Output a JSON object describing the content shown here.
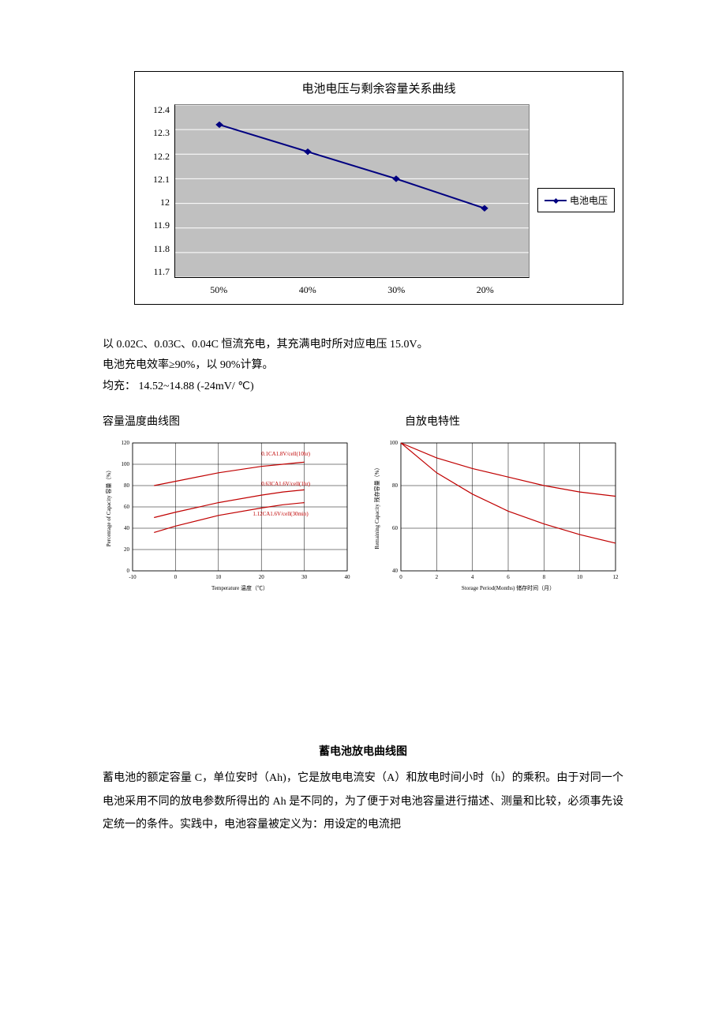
{
  "main_chart": {
    "type": "line",
    "title": "电池电压与剩余容量关系曲线",
    "title_fontsize": 15,
    "legend_label": "电池电压",
    "categories": [
      "50%",
      "40%",
      "30%",
      "20%"
    ],
    "values": [
      12.32,
      12.21,
      12.1,
      11.98
    ],
    "ylim": [
      11.7,
      12.4
    ],
    "ytick_step": 0.1,
    "yticks": [
      "12.4",
      "12.3",
      "12.2",
      "12.1",
      "12",
      "11.9",
      "11.8",
      "11.7"
    ],
    "line_color": "#000080",
    "marker_color": "#000080",
    "plot_background": "#c0c0c0",
    "chart_border": "#000000",
    "gridline_color": "#808080",
    "gridline_major_color": "#ffffff"
  },
  "notes": {
    "line1": "以 0.02C、0.03C、0.04C 恒流充电，其充满电时所对应电压 15.0V。",
    "line2": "电池充电效率≥90%，以 90%计算。",
    "line3": "均充：  14.52~14.88 (-24mV/ ℃)"
  },
  "small_chart_left": {
    "type": "line",
    "title": "容量温度曲线图",
    "xlabel": "Temperature 温度（℃）",
    "ylabel": "Percentage of Capacity 容量（%）",
    "xlim": [
      -10,
      40
    ],
    "xtick_step": 10,
    "ylim": [
      0,
      120
    ],
    "ytick_step": 20,
    "xticks": [
      "-10",
      "0",
      "10",
      "20",
      "30",
      "40"
    ],
    "yticks": [
      "0",
      "20",
      "40",
      "60",
      "80",
      "100",
      "120"
    ],
    "series": [
      {
        "label": "0.1CA1.8V/cell(10hr)",
        "points": [
          [
            -5,
            80
          ],
          [
            0,
            84
          ],
          [
            10,
            92
          ],
          [
            20,
            98
          ],
          [
            25,
            100
          ],
          [
            30,
            102
          ]
        ]
      },
      {
        "label": "0.63CA1.6V/cell(1hr)",
        "points": [
          [
            -5,
            50
          ],
          [
            0,
            55
          ],
          [
            10,
            64
          ],
          [
            20,
            71
          ],
          [
            25,
            74
          ],
          [
            30,
            76
          ]
        ]
      },
      {
        "label": "1.12CA1.6V/cell(30min)",
        "points": [
          [
            -5,
            36
          ],
          [
            0,
            42
          ],
          [
            10,
            52
          ],
          [
            20,
            59
          ],
          [
            25,
            62
          ],
          [
            30,
            64
          ]
        ]
      }
    ],
    "line_color": "#c00000",
    "grid_color": "#000000",
    "text_color": "#000000",
    "axis_fontsize": 7,
    "series_label_color": "#c00000"
  },
  "small_chart_right": {
    "type": "line",
    "title": "自放电特性",
    "xlabel": "Storage Period(Months) 储存时间（月）",
    "ylabel": "Remaining Capacity 残存容量（%）",
    "xlim": [
      0,
      12
    ],
    "xtick_step": 2,
    "ylim": [
      40,
      100
    ],
    "ytick_step": 20,
    "xticks": [
      "0",
      "2",
      "4",
      "6",
      "8",
      "10",
      "12"
    ],
    "yticks": [
      "40",
      "60",
      "80",
      "100"
    ],
    "series": [
      {
        "label": "",
        "points": [
          [
            0,
            100
          ],
          [
            2,
            93
          ],
          [
            4,
            88
          ],
          [
            6,
            84
          ],
          [
            8,
            80
          ],
          [
            10,
            77
          ],
          [
            12,
            75
          ]
        ]
      },
      {
        "label": "",
        "points": [
          [
            0,
            100
          ],
          [
            2,
            86
          ],
          [
            4,
            76
          ],
          [
            6,
            68
          ],
          [
            8,
            62
          ],
          [
            10,
            57
          ],
          [
            12,
            53
          ]
        ]
      }
    ],
    "line_color": "#c00000",
    "grid_color": "#000000",
    "text_color": "#000000",
    "axis_fontsize": 7
  },
  "body": {
    "title": "蓄电池放电曲线图",
    "text": "蓄电池的额定容量 C，单位安时（Ah)，它是放电电流安（A）和放电时间小时（h）的乘积。由于对同一个电池采用不同的放电参数所得出的 Ah 是不同的，为了便于对电池容量进行描述、测量和比较，必须事先设定统一的条件。实践中，电池容量被定义为：用设定的电流把"
  }
}
